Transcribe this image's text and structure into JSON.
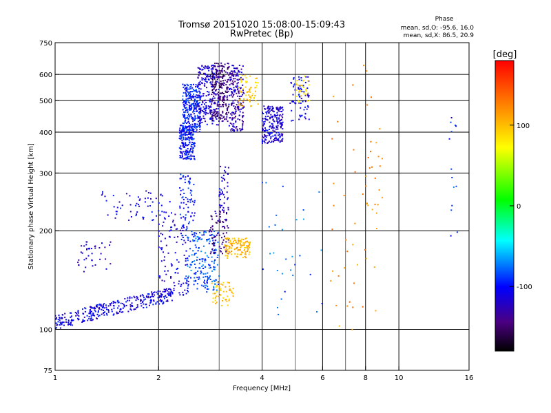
{
  "chart_data": {
    "type": "scatter",
    "title": "Tromsø 20151020 15:08:00-15:09:43",
    "subtitle": "RwPretec (Bp)",
    "xlabel": "Frequency [MHz]",
    "ylabel": "Stationary phase Virtual Height [km]",
    "x_scale": "log",
    "y_scale": "log",
    "xlim": [
      1,
      16
    ],
    "ylim": [
      75,
      750
    ],
    "x_ticks": [
      1,
      2,
      4,
      6,
      8,
      10,
      16
    ],
    "x_ticks_labels": [
      "1",
      "2",
      "4",
      "6",
      "8",
      "10",
      "16"
    ],
    "y_ticks": [
      75,
      100,
      200,
      300,
      400,
      500,
      600,
      750
    ],
    "y_ticks_labels": [
      "75",
      "100",
      "200",
      "300",
      "400",
      "500",
      "600",
      "750"
    ],
    "grid": true,
    "stats": {
      "heading": "Phase",
      "line_o": "mean, sd,O: -95.6, 16.0",
      "line_x": "mean, sd,X:  86.5, 20.9"
    },
    "colorbar": {
      "label": "[deg]",
      "range": [
        -180,
        180
      ],
      "ticks": [
        -100,
        0,
        100
      ],
      "tick_labels": [
        "-100",
        "0",
        "100"
      ],
      "colormap": "rainbow"
    },
    "clusters": [
      {
        "f0": 1.0,
        "f1": 2.2,
        "h0": 105,
        "h1": 128,
        "phase": -110,
        "n": 320,
        "shape": "rising"
      },
      {
        "f0": 1.15,
        "f1": 1.45,
        "h0": 150,
        "h1": 185,
        "phase": -120,
        "n": 40
      },
      {
        "f0": 1.35,
        "f1": 2.25,
        "h0": 215,
        "h1": 265,
        "phase": -110,
        "n": 60
      },
      {
        "f0": 2.0,
        "f1": 2.45,
        "h0": 125,
        "h1": 230,
        "phase": -115,
        "n": 110
      },
      {
        "f0": 2.3,
        "f1": 2.55,
        "h0": 330,
        "h1": 420,
        "phase": -100,
        "n": 200
      },
      {
        "f0": 2.35,
        "f1": 2.65,
        "h0": 400,
        "h1": 560,
        "phase": -95,
        "n": 280
      },
      {
        "f0": 2.6,
        "f1": 3.0,
        "h0": 420,
        "h1": 640,
        "phase": -115,
        "n": 220
      },
      {
        "f0": 2.85,
        "f1": 3.2,
        "h0": 430,
        "h1": 650,
        "phase": -145,
        "n": 220
      },
      {
        "f0": 3.2,
        "f1": 3.55,
        "h0": 400,
        "h1": 640,
        "phase": -125,
        "n": 200
      },
      {
        "f0": 3.4,
        "f1": 3.9,
        "h0": 480,
        "h1": 600,
        "phase": 95,
        "n": 60
      },
      {
        "f0": 4.0,
        "f1": 4.6,
        "h0": 370,
        "h1": 480,
        "phase": -115,
        "n": 220
      },
      {
        "f0": 4.8,
        "f1": 5.5,
        "h0": 430,
        "h1": 590,
        "phase": -105,
        "n": 70
      },
      {
        "f0": 5.0,
        "f1": 5.5,
        "h0": 480,
        "h1": 600,
        "phase": 85,
        "n": 30
      },
      {
        "f0": 2.4,
        "f1": 3.0,
        "h0": 130,
        "h1": 200,
        "phase": -85,
        "n": 200
      },
      {
        "f0": 2.8,
        "f1": 3.2,
        "h0": 170,
        "h1": 230,
        "phase": -140,
        "n": 80
      },
      {
        "f0": 3.1,
        "f1": 3.7,
        "h0": 165,
        "h1": 190,
        "phase": 105,
        "n": 120
      },
      {
        "f0": 2.85,
        "f1": 3.3,
        "h0": 118,
        "h1": 140,
        "phase": 95,
        "n": 50
      },
      {
        "f0": 2.3,
        "f1": 2.55,
        "h0": 180,
        "h1": 300,
        "phase": -100,
        "n": 80
      },
      {
        "f0": 3.0,
        "f1": 3.2,
        "h0": 230,
        "h1": 320,
        "phase": -110,
        "n": 40
      },
      {
        "f0": 6.3,
        "f1": 9.0,
        "h0": 95,
        "h1": 650,
        "phase": 120,
        "n": 40
      },
      {
        "f0": 8.0,
        "f1": 9.0,
        "h0": 170,
        "h1": 380,
        "phase": 120,
        "n": 20
      },
      {
        "f0": 14.0,
        "f1": 14.8,
        "h0": 180,
        "h1": 580,
        "phase": -90,
        "n": 14
      },
      {
        "f0": 4.0,
        "f1": 6.0,
        "h0": 110,
        "h1": 300,
        "phase": -80,
        "n": 30
      }
    ]
  }
}
